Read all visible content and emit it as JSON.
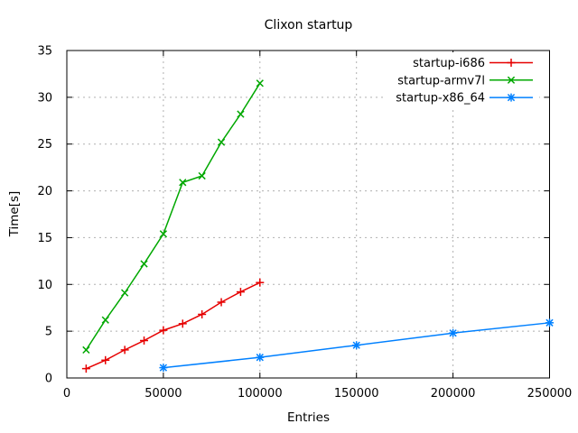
{
  "chart_data": {
    "type": "line",
    "title": "Clixon startup",
    "xlabel": "Entries",
    "ylabel": "Time[s]",
    "xlim": [
      0,
      250000
    ],
    "ylim": [
      0,
      35
    ],
    "xticks": [
      0,
      50000,
      100000,
      150000,
      200000,
      250000
    ],
    "yticks": [
      0,
      5,
      10,
      15,
      20,
      25,
      30,
      35
    ],
    "grid": true,
    "legend_position": "top-right-inside",
    "series": [
      {
        "name": "startup-i686",
        "color": "#e60000",
        "marker": "plus",
        "x": [
          10000,
          20000,
          30000,
          40000,
          50000,
          60000,
          70000,
          80000,
          90000,
          100000
        ],
        "y": [
          1.0,
          1.9,
          3.0,
          4.0,
          5.1,
          5.8,
          6.8,
          8.1,
          9.2,
          10.2
        ]
      },
      {
        "name": "startup-armv7l",
        "color": "#00a800",
        "marker": "cross",
        "x": [
          10000,
          20000,
          30000,
          40000,
          50000,
          60000,
          70000,
          80000,
          90000,
          100000
        ],
        "y": [
          3.0,
          6.2,
          9.1,
          12.2,
          15.4,
          20.9,
          21.6,
          25.2,
          28.2,
          31.5
        ]
      },
      {
        "name": "startup-x86_64",
        "color": "#0080ff",
        "marker": "asterisk",
        "x": [
          50000,
          100000,
          150000,
          200000,
          250000
        ],
        "y": [
          1.1,
          2.2,
          3.5,
          4.8,
          5.9
        ]
      }
    ],
    "colors": {
      "background": "#ffffff",
      "border": "#000000",
      "grid": "#b0b0b0",
      "text": "#000000"
    }
  }
}
